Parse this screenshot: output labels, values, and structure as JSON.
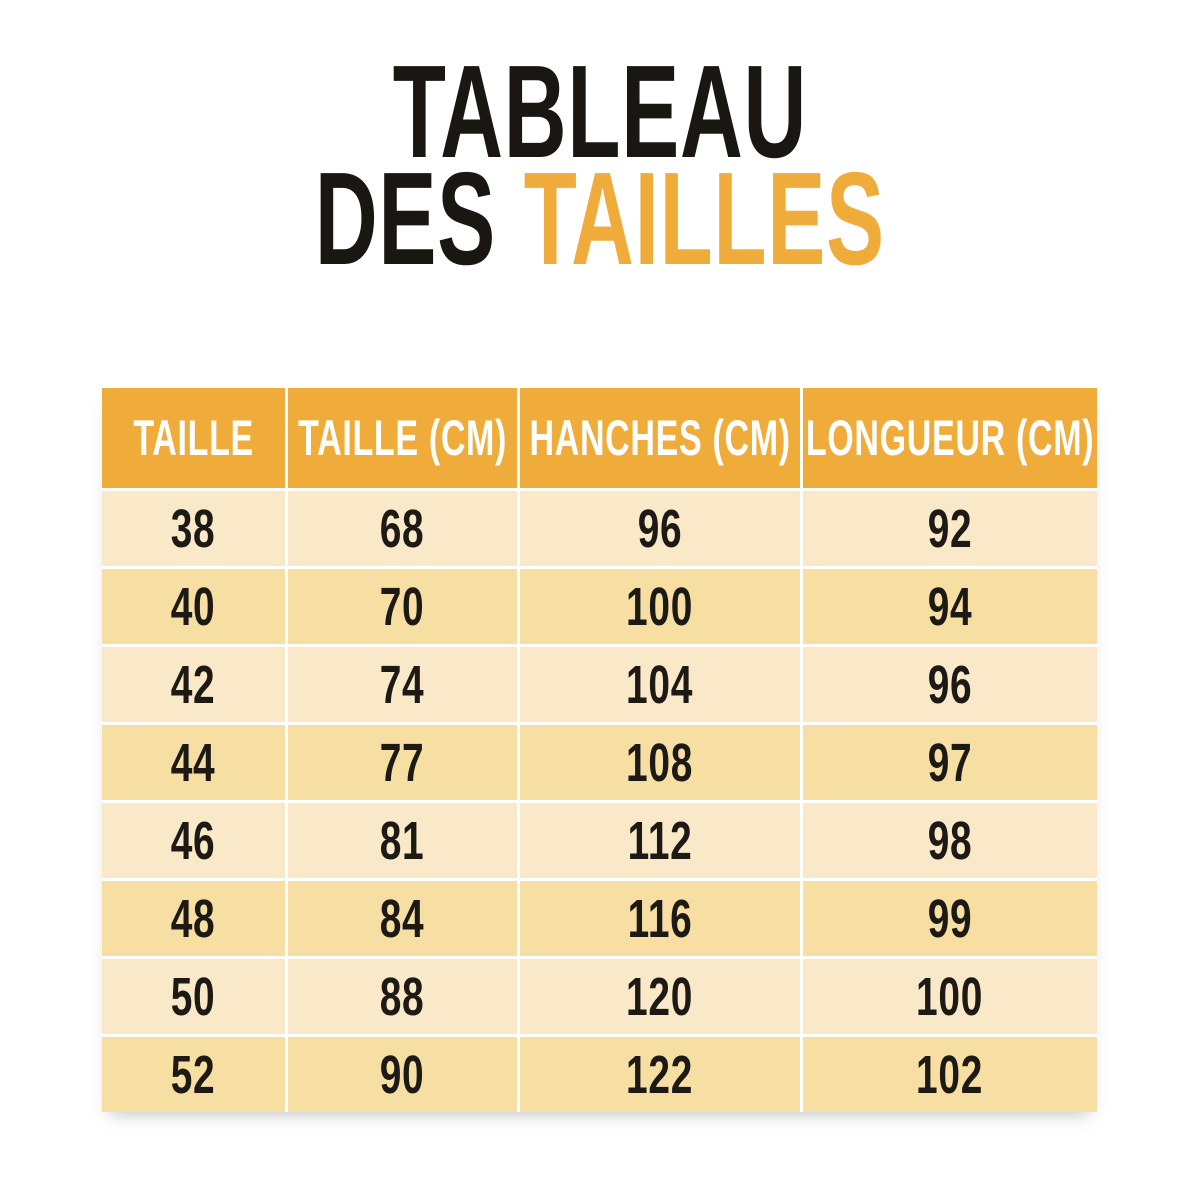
{
  "title": {
    "line1": "TABLEAU",
    "line2_black": "DES",
    "line2_accent": "TAILLES"
  },
  "colors": {
    "accent": "#EFAC3B",
    "title_text": "#1A1713",
    "header_text": "#FFFFFF",
    "body_text": "#1D1A16",
    "row_light": "#FAE9C9",
    "row_dark": "#F7DFA4",
    "background": "#FFFFFF"
  },
  "chart_data": {
    "type": "table",
    "title": "TABLEAU DES TAILLES",
    "columns": [
      "TAILLE",
      "TAILLE (CM)",
      "HANCHES (CM)",
      "LONGUEUR (CM)"
    ],
    "rows": [
      [
        38,
        68,
        96,
        92
      ],
      [
        40,
        70,
        100,
        94
      ],
      [
        42,
        74,
        104,
        96
      ],
      [
        44,
        77,
        108,
        97
      ],
      [
        46,
        81,
        112,
        98
      ],
      [
        48,
        84,
        116,
        99
      ],
      [
        50,
        88,
        120,
        100
      ],
      [
        52,
        90,
        122,
        102
      ]
    ],
    "layout": {
      "header_position": "top",
      "grid": "white 3px separators",
      "stripes": "alternating light/dark cream rows"
    }
  }
}
